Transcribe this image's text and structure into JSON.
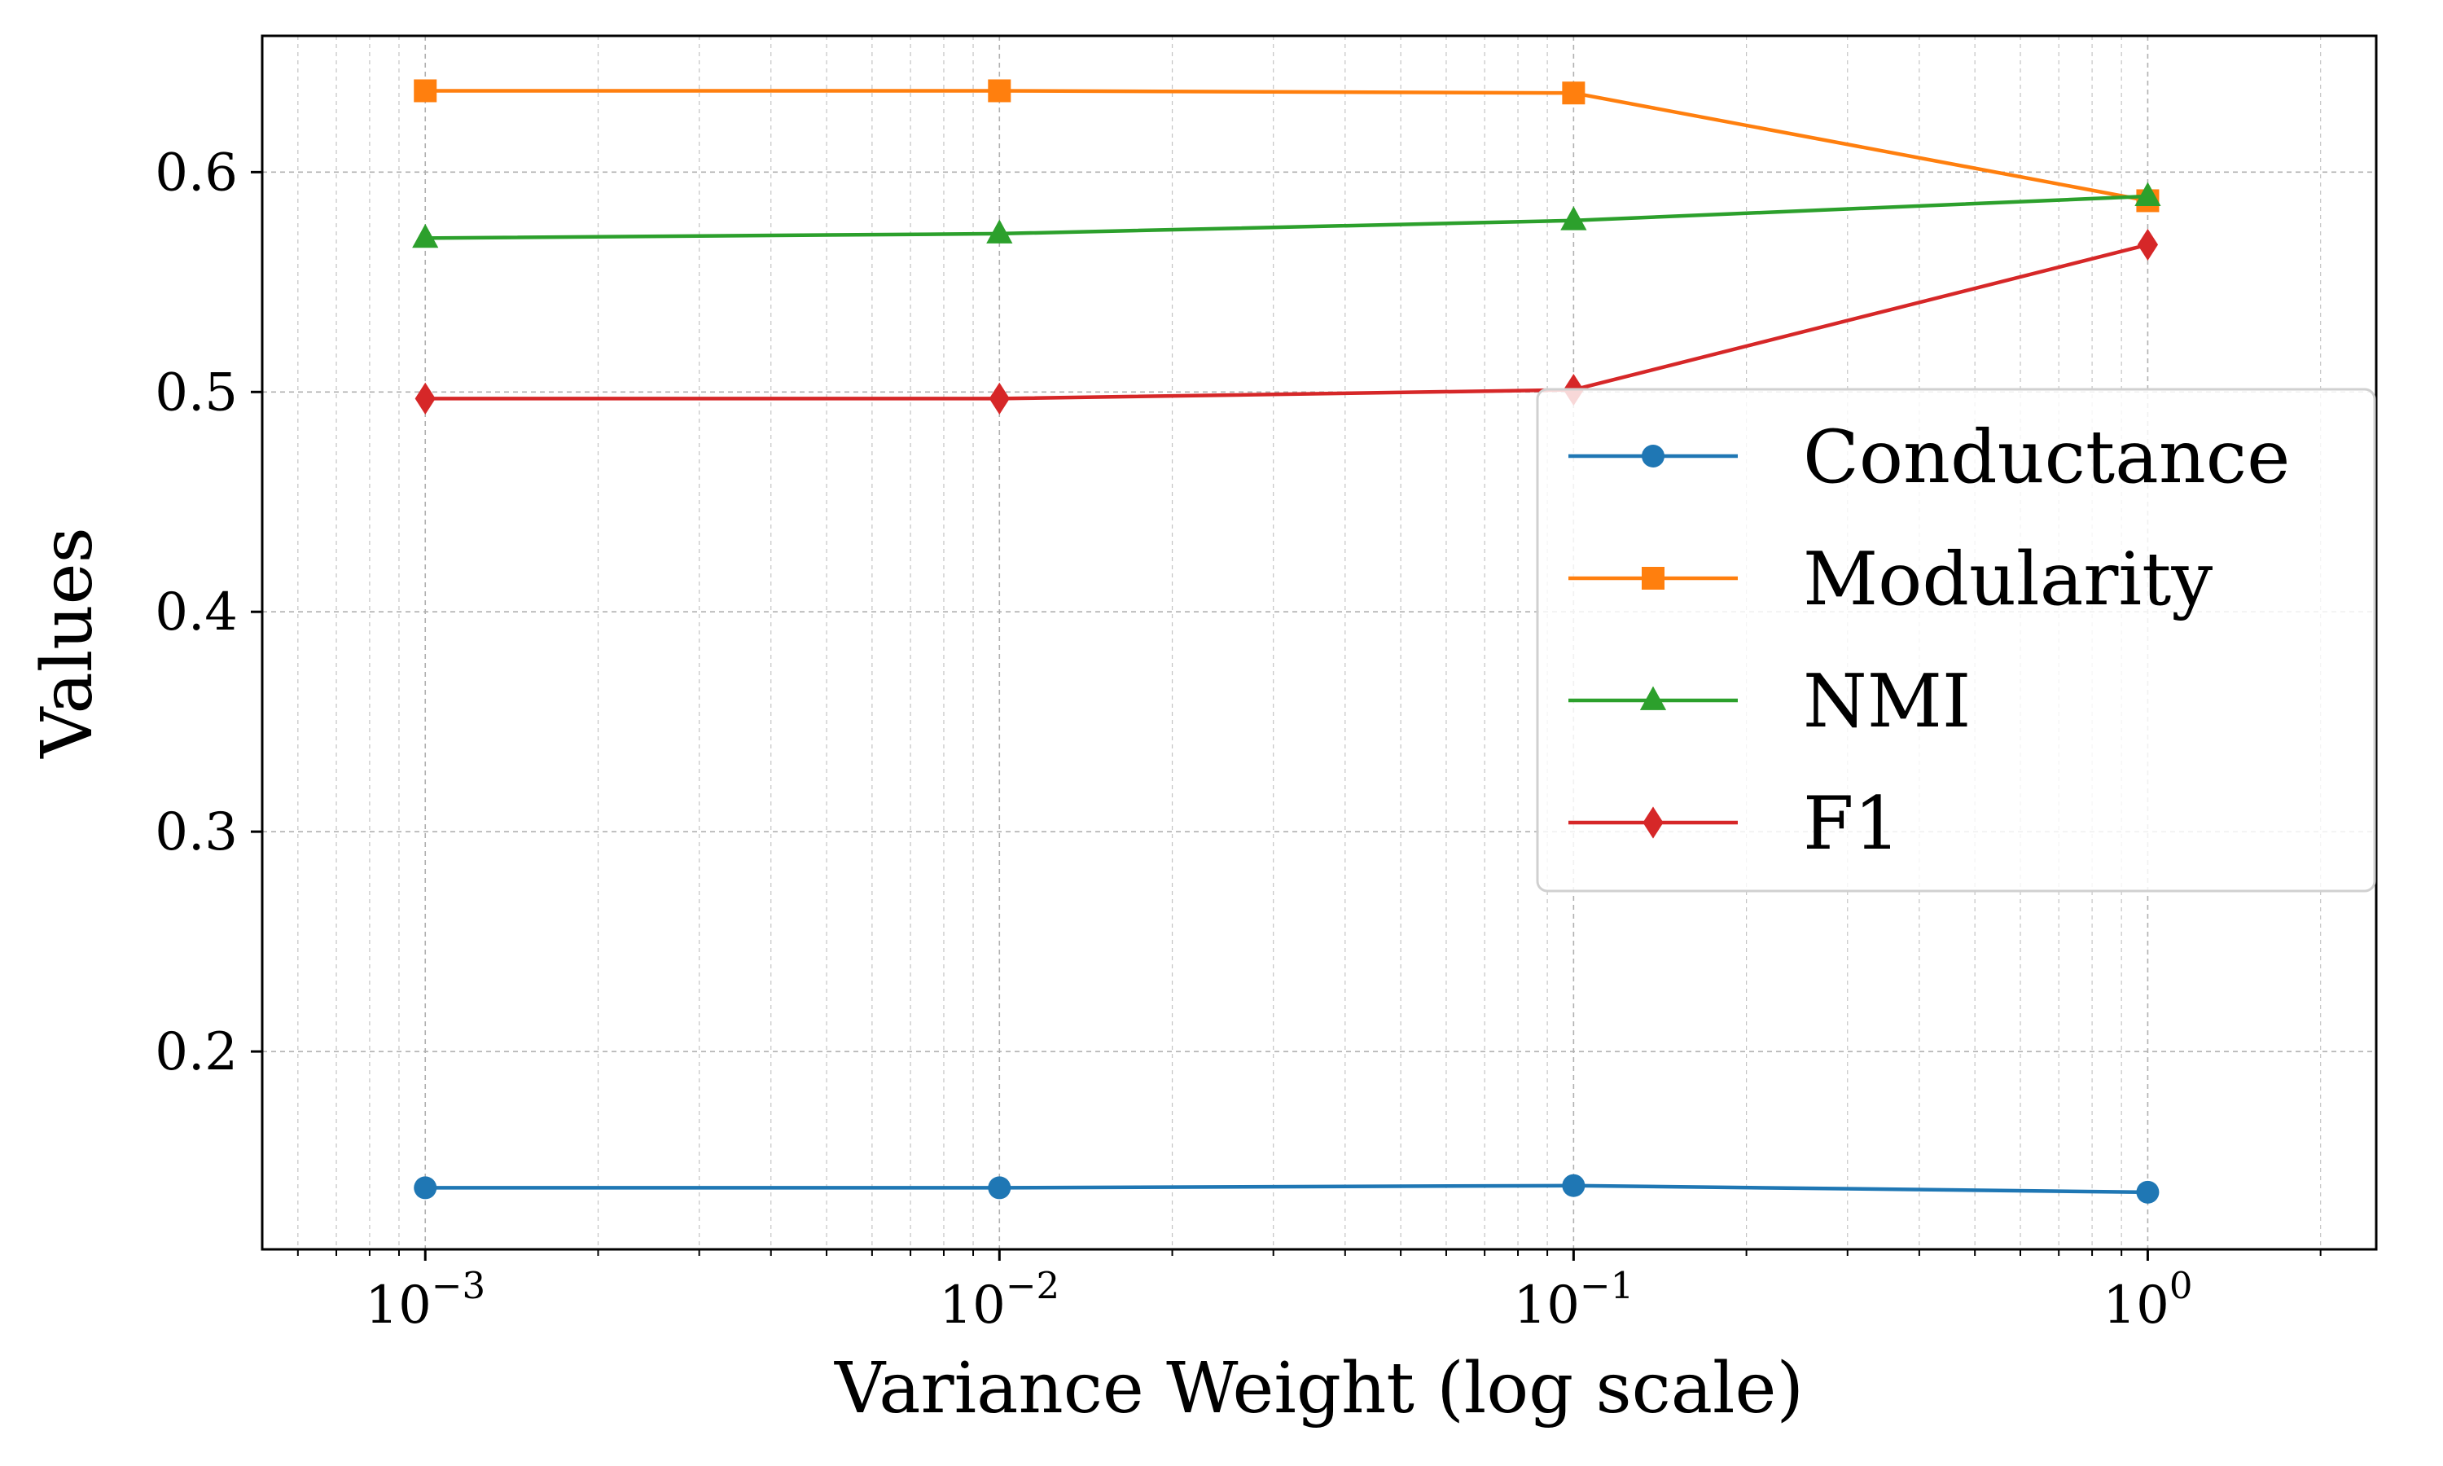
{
  "chart_data": {
    "type": "line",
    "xscale": "log",
    "x": [
      0.001,
      0.01,
      0.1,
      1
    ],
    "xlim": [
      0.00052,
      2.5
    ],
    "ylim": [
      0.11,
      0.662
    ],
    "xticks": [
      {
        "base": "10",
        "exp": "−3"
      },
      {
        "base": "10",
        "exp": "−2"
      },
      {
        "base": "10",
        "exp": "−1"
      },
      {
        "base": "10",
        "exp": "0"
      }
    ],
    "yticks": [
      {
        "value": 0.2,
        "label": "0.2"
      },
      {
        "value": 0.3,
        "label": "0.3"
      },
      {
        "value": 0.4,
        "label": "0.4"
      },
      {
        "value": 0.5,
        "label": "0.5"
      },
      {
        "value": 0.6,
        "label": "0.6"
      }
    ],
    "xlabel": "Variance Weight (log scale)",
    "ylabel": "Values",
    "grid": true,
    "legend_position": "center-right",
    "series": [
      {
        "name": "Conductance",
        "marker": "circle",
        "color": "#1f77b4",
        "values": [
          0.138,
          0.138,
          0.139,
          0.136
        ]
      },
      {
        "name": "Modularity",
        "marker": "square",
        "color": "#ff7f0e",
        "values": [
          0.637,
          0.637,
          0.636,
          0.587
        ]
      },
      {
        "name": "NMI",
        "marker": "triangle",
        "color": "#2ca02c",
        "values": [
          0.57,
          0.572,
          0.578,
          0.589
        ]
      },
      {
        "name": "F1",
        "marker": "diamond",
        "color": "#d62728",
        "values": [
          0.497,
          0.497,
          0.501,
          0.567
        ]
      }
    ]
  }
}
